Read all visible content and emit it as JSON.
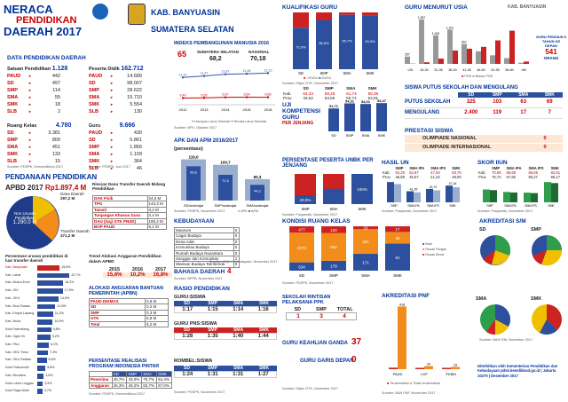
{
  "header": {
    "line1": "NERACA",
    "line2": "PENDIDIKAN",
    "line3": "DAERAH 2017",
    "kab": "KAB. BANYUASIN",
    "prov": "SUMATERA SELATAN"
  },
  "data_pend": {
    "title": "DATA PENDIDIKAN DAERAH",
    "satuan": {
      "label": "Satuan Pendidikan",
      "total": "1.128",
      "rows": [
        [
          "PAUD",
          "442"
        ],
        [
          "SD",
          "497"
        ],
        [
          "SMP",
          "114"
        ],
        [
          "SMA",
          "55"
        ],
        [
          "SMK",
          "18"
        ],
        [
          "SLB",
          "2"
        ]
      ]
    },
    "peserta": {
      "label": "Peserta Didik",
      "total": "162.712",
      "rows": [
        [
          "PAUD",
          "14.689"
        ],
        [
          "SD",
          "98.007"
        ],
        [
          "SMP",
          "28.622"
        ],
        [
          "SMA",
          "15.710"
        ],
        [
          "SMK",
          "5.554"
        ],
        [
          "SLB",
          "130"
        ]
      ]
    },
    "ruang": {
      "label": "Ruang Kelas",
      "total": "4.780",
      "rows": [
        [
          "SD",
          "3.381"
        ],
        [
          "SMP",
          "800"
        ],
        [
          "SMA",
          "451"
        ],
        [
          "SMK",
          "133"
        ],
        [
          "SLB",
          "15"
        ]
      ]
    },
    "guru": {
      "label": "Guru",
      "total": "9.666",
      "rows": [
        [
          "PAUD",
          "430"
        ],
        [
          "SD",
          "5.861"
        ],
        [
          "SMP",
          "1.856"
        ],
        [
          "SMA",
          "1.109"
        ],
        [
          "SMK",
          "364"
        ],
        [
          "SLB",
          "46"
        ]
      ]
    },
    "src1": "Sumber: PDSPK, Kemendikbud 2017",
    "src2": "Sumber: PDSPK, Juni 2017"
  },
  "dana": {
    "title": "PENDANAAN PENDIDIKAN",
    "apbd_label": "APBD 2017",
    "apbd_val": "Rp1.897,4 M",
    "non": "Non Urusan Pendidikan",
    "non_val": "1.290,0 M",
    "dd_label": "Dana Daerah",
    "dd_val": "297,2 M",
    "tf_label": "Transfer Daerah",
    "tf_val": "371,2 M",
    "rincian_title": "Rincian Dana Transfer Daerah Bidang Pendidikan",
    "rincian": [
      [
        "DAK Fisik",
        "24,6 M"
      ],
      [
        "TPG",
        "143,3 M"
      ],
      [
        "Tamsil",
        "3,2 M"
      ],
      [
        "Tunjangan Khusus Guru",
        "0,4 M"
      ],
      [
        "DAU (Gaji GTK PNSD)",
        "185,4 M"
      ],
      [
        "BOP PAUD",
        "6,1 M"
      ]
    ],
    "pers_title": "Persentase urusan pendidikan di luar transfer daerah",
    "trend_title": "Trend Alokasi Anggaran Pendidikan dalam APBD",
    "trend_years": [
      "2015",
      "2016",
      "2017"
    ],
    "trend_vals": [
      "15,6%",
      "10,2%",
      "16,8%"
    ],
    "bars": [
      [
        "Kab. Banyuasin",
        "15,8%"
      ],
      [
        "Kab. Lahat",
        "22,7%"
      ],
      [
        "Kab. Muara Enim",
        "18,3%"
      ],
      [
        "Kab. OKI",
        "17,9%"
      ],
      [
        "Kab. OKU",
        "14,9%"
      ],
      [
        "Kab. Musi Rawas",
        "12,8%"
      ],
      [
        "Kab. Empat Lawang",
        "11,2%"
      ],
      [
        "Kab. Muba",
        "10,9%"
      ],
      [
        "Kota Palembang",
        "9,8%"
      ],
      [
        "Kab. Ogan Ilir",
        "9,2%"
      ],
      [
        "Kab. PALI",
        "8,1%"
      ],
      [
        "Kab. OKU Timur",
        "7,4%"
      ],
      [
        "Kab. OKU Selatan",
        "6,6%"
      ],
      [
        "Kota Prabumulih",
        "5,8%"
      ],
      [
        "Kab. Muratara",
        "4,6%"
      ],
      [
        "Kota Lubuk Linggau",
        "3,9%"
      ],
      [
        "Kota Pagar Alam",
        "3,7%"
      ]
    ],
    "bantuan_title": "ALOKASI ANGGARAN BANTUAN PEMERINTAH (APBN)",
    "bantuan": [
      [
        "PAUD-DIKMAS",
        "0,9 M"
      ],
      [
        "SD",
        "0,2 M"
      ],
      [
        "SMP",
        "0,3 M"
      ],
      [
        "GTK",
        "6,8 M"
      ],
      [
        "Total",
        "8,2 M"
      ]
    ],
    "pip_title": "PERSENTASE REALISASI PROGRAM INDONESIA PINTAR",
    "pip_head": [
      "SD",
      "SMP",
      "SMA",
      "SMK"
    ],
    "pip": [
      [
        "Penerima",
        "40,7%",
        "43,0%",
        "70,7%",
        "54,4%"
      ],
      [
        "Anggaran",
        "45,3%",
        "49,2%",
        "82,7%",
        "57,0%"
      ]
    ],
    "src": "Sumber: PDSPK, Kemendikbud 2017"
  },
  "ipm": {
    "title": "INDEKS PEMBANGUNAN MANUSIA 2016",
    "rank": "65",
    "sumsel": "SUMATERA SELATAN",
    "sumsel_val": "68,2",
    "nas": "NASIONAL",
    "nas_val": "70,18",
    "years": [
      "2012",
      "2013",
      "2014",
      "2015",
      "2016"
    ],
    "hls": [
      "11,14",
      "11,47",
      "11,87",
      "11,98",
      "12,13"
    ],
    "rls": [
      "6,49",
      "6,55",
      "6,67",
      "6,69",
      "6,68"
    ],
    "legend1": "Harapan Lama Sekolah",
    "legend2": "Rerata Lama Sekolah",
    "src": "Sumber: BPS, Oktober 2017"
  },
  "apk": {
    "title": "APK DAN APM 2016/2017",
    "sub": "(persentase)",
    "cats": [
      "SD/sederajat",
      "SMP/sederajat",
      "SMA/sederajat"
    ],
    "apk": [
      116.0,
      100.7,
      60.3
    ],
    "apm": [
      96.6,
      72.5,
      44.2
    ],
    "apk_lbl": [
      "116,0",
      "100,7",
      "60,3"
    ],
    "apm_lbl": [
      "96,6",
      "72,5",
      "44,2"
    ],
    "legend": [
      "APK",
      "APM"
    ],
    "src": "Sumber: PDSPK, November 2017"
  },
  "kebud": {
    "title": "KEBUDAYAAN",
    "rows": [
      [
        "Museum",
        "0"
      ],
      [
        "Cagar Budaya",
        "0"
      ],
      [
        "Desa Adat",
        "0"
      ],
      [
        "Komunitas Budaya",
        "0"
      ],
      [
        "Rumah Budaya Nusantara",
        "0"
      ],
      [
        "Sanggar dan Komunitas",
        "1"
      ],
      [
        "Warisan Budaya Tak Benda",
        "0"
      ]
    ],
    "src": "Sumber: Ditjen Kebudayaan, November 2017"
  },
  "bahasa": {
    "title": "BAHASA DAERAH",
    "val": "4",
    "src": "Sumber: BPPB, November 2017"
  },
  "rasio": {
    "title": "RASIO PENDIDIKAN",
    "g_title": "GURU:SISWA",
    "g_head": [
      "SD",
      "SMP",
      "SMA",
      "SMK"
    ],
    "g_vals": [
      "1:17",
      "1:15",
      "1:14",
      "1:16"
    ],
    "p_title": "GURU PNS:SISWA",
    "p_vals": [
      "1:28",
      "1:35",
      "1:40",
      "1:44"
    ],
    "r_title": "ROMBEL:SISWA",
    "r_vals": [
      "1:24",
      "1:31",
      "1:31",
      "1:27"
    ],
    "src": "Sumber: PDSPK, November 2017"
  },
  "kualifikasi": {
    "title": "KUALIFIKASI GURU",
    "cats": [
      "SD",
      "SMP",
      "SMA",
      "SMK"
    ],
    "s1": [
      72.9,
      86.8,
      95.7,
      93.9
    ],
    "lbl": [
      "72,9%",
      "86,8%",
      "95,7%",
      "93,9%"
    ],
    "legend": [
      "<S1/D4",
      "S1/D4"
    ],
    "src": "Sumber: Ditjen GTK, November 2017"
  },
  "ukg": {
    "head": [
      "",
      "SD",
      "SMP",
      "SMA",
      "SMK"
    ],
    "kab": [
      "Kab.",
      "54,33",
      "59,25",
      "61,74",
      "58,38"
    ],
    "prov": [
      "Prov.",
      "49,62",
      "53,66",
      "56,74",
      "53,81"
    ],
    "title": "UJI KOMPETENSI GURU",
    "sub": "PER JENJANG",
    "cats": [
      "SD",
      "SMP",
      "SMA",
      "SMK"
    ],
    "vals": [
      51.71,
      54.31,
      54.01,
      54.47
    ],
    "vlbl": [
      "51,71",
      "54,31",
      "54,01",
      "54,47"
    ]
  },
  "usia": {
    "title": "GURU MENURUT USIA",
    "kab": "KAB. BANYUASIN",
    "cats": [
      "<25",
      "26-30",
      "31-35",
      "36-40",
      "41-45",
      "46-50",
      "51-55",
      "56-60",
      ">60"
    ],
    "pns": [
      9,
      56,
      185,
      467,
      531,
      596,
      822,
      1162,
      81
    ],
    "non": [
      257,
      1557,
      1000,
      1201,
      697,
      440,
      300,
      200,
      40
    ],
    "nlbl": [
      "257",
      "1.557",
      "1.000",
      "1.201",
      "697",
      "",
      "",
      "",
      ""
    ],
    "legend": [
      "PNS",
      "Bukan PNS"
    ],
    "pensiun_lbl": "GURU PENSIUN 5 TAHUN KE DEPAN",
    "pensiun_val": "541",
    "pensiun_unit": "ORANG"
  },
  "putus": {
    "title": "SISWA PUTUS SEKOLAH DAN MENGULANG",
    "head": [
      "SD",
      "SMP",
      "SMA",
      "SMK"
    ],
    "ps": [
      "325",
      "103",
      "63",
      "69"
    ],
    "mg": [
      "2.400",
      "119",
      "17",
      "7"
    ],
    "ps_lbl": "PUTUS SEKOLAH",
    "mg_lbl": "MENGULANG"
  },
  "prestasi": {
    "title": "PRESTASI SISWA",
    "rows": [
      [
        "OLIMPIADE NASIONAL",
        "0"
      ],
      [
        "OLIMPIADE INTERNASIONAL",
        "0"
      ]
    ]
  },
  "unbk": {
    "title": "PERSENTASE PESERTA UNBK PER JENJANG",
    "cats": [
      "SMP",
      "SMA",
      "SMK"
    ],
    "vals": [
      28.9,
      50.7,
      100
    ],
    "lbl": [
      "28,9%",
      "",
      "100%"
    ],
    "src": "Sumber: Puspendik, November 2017"
  },
  "hasil_un": {
    "title": "HASIL UN",
    "head": [
      "",
      "SMP",
      "SMA IPA",
      "SMA IPS",
      "SMK"
    ],
    "kab": [
      "Kab.",
      "54,29",
      "52,87",
      "47,93",
      "53,75"
    ],
    "prov": [
      "Prov.",
      "46,89",
      "45,57",
      "41,33",
      "49,00"
    ],
    "cats": [
      "SMP",
      "SMA IPA",
      "SMA IPS",
      "SMK"
    ],
    "vals": [
      50.79,
      41.35,
      43.72,
      47.16
    ],
    "vlbl": [
      "50,79",
      "41,35",
      "43,72",
      "47,16"
    ],
    "legend": "2016 | 2017",
    "src": "Sumber: Puspendik, November 2017"
  },
  "iiun": {
    "title": "SKOR IIUN",
    "head": [
      "",
      "SMP",
      "SMA IPA",
      "SMA IPS",
      "SMK"
    ],
    "kab": [
      "Kab.",
      "70,66",
      "66,69",
      "65,65",
      "82,61"
    ],
    "prov": [
      "Prov.",
      "75,72",
      "67,55",
      "65,27",
      "66,17"
    ],
    "cats": [
      "SMP",
      "SMA IPA",
      "SMA IPS",
      "SMK"
    ],
    "src": "Sumber: Puspendik, November 2017"
  },
  "kondisi": {
    "title": "KONDISI RUANG KELAS",
    "cats": [
      "SD",
      "SMP",
      "SMA",
      "SMK"
    ],
    "baik": [
      634,
      178,
      171,
      81
    ],
    "rr": [
      2270,
      502,
      251,
      35
    ],
    "rb": [
      477,
      120,
      29,
      17
    ],
    "legend": [
      "Baik",
      "Rusak Ringan",
      "Rusak Berat"
    ],
    "src": "Sumber: PDSPK, November 2017"
  },
  "akreditasi": {
    "title": "AKREDITASI S/M",
    "sd": "SD",
    "smp": "SMP",
    "sma": "SMA",
    "smk": "SMK",
    "src": "Sumber: BAN S/M, November 2017"
  },
  "ppk": {
    "title": "SEKOLAH RINTISAN PELAKSANA PPK",
    "head": [
      "SD",
      "SMP",
      "TOTAL"
    ],
    "vals": [
      "1",
      "3",
      "4"
    ],
    "src": "Sumber: Ditjen Dikdas, November 2017"
  },
  "keahlian": {
    "title": "GURU KEAHLIAN GANDA",
    "val": "37"
  },
  "garis": {
    "title": "GURU GARIS DEPAN",
    "val": "0",
    "src": "Sumber: Ditjen GTK, November 2017"
  },
  "pnf": {
    "title": "AKREDITASI PNF",
    "cats": [
      "PAUD",
      "LKP",
      "PKBM"
    ],
    "a": [
      10,
      3,
      2
    ],
    "b": [
      418,
      20,
      15
    ],
    "legend": [
      "Terakreditasi",
      "Tidak terakreditasi"
    ],
    "src": "Sumber: BAN PNF, November 2017"
  },
  "footer": "Diterbitkan oleh Kementerian Pendidikan dan Kebudayaan pdsk.kemdikbud.go.id | Jakarta 10270 | Desember 2017"
}
